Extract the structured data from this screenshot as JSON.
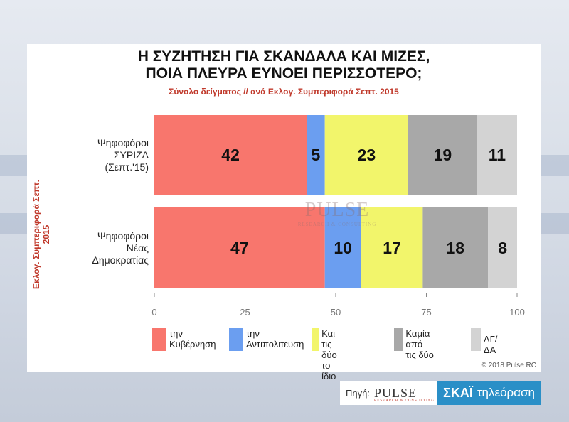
{
  "title_line1": "Η ΣΥΖΗΤΗΣΗ ΓΙΑ ΣΚΑΝΔΑΛΑ ΚΑΙ ΜΙΖΕΣ,",
  "title_line2": "ΠΟΙΑ ΠΛΕΥΡΑ ΕΥΝΟΕΙ ΠΕΡΙΣΣΟΤΕΡΟ;",
  "subtitle": "Σύνολο δείγματος // ανά Εκλογ. Συμπεριφορά Σεπτ. 2015",
  "copyright": "© 2018 Pulse RC",
  "watermark": {
    "name": "PULSE",
    "tagline": "RESEARCH & CONSULTING"
  },
  "source": {
    "label": "Πηγή:",
    "pulse": "PULSE",
    "pulse_sub": "RESEARCH & CONSULTING",
    "skai_bold": "ΣΚΑΪ",
    "skai_rest": "τηλεόραση"
  },
  "chart_data": {
    "type": "bar",
    "orientation": "horizontal",
    "stacked": true,
    "title": "Η ΣΥΖΗΤΗΣΗ ΓΙΑ ΣΚΑΝΔΑΛΑ ΚΑΙ ΜΙΖΕΣ, ΠΟΙΑ ΠΛΕΥΡΑ ΕΥΝΟΕΙ ΠΕΡΙΣΣΟΤΕΡΟ;",
    "subtitle": "Σύνολο δείγματος // ανά Εκλογ. Συμπεριφορά Σεπτ. 2015",
    "ylabel": "Εκλογ. Συμπεριφορά Σεπτ. 2015",
    "xlabel": "",
    "xlim": [
      0,
      100
    ],
    "xticks": [
      0,
      25,
      50,
      75,
      100
    ],
    "categories": [
      "Ψηφοφόροι\nΣΥΡΙΖΑ\n(Σεπτ.'15)",
      "Ψηφοφόροι\nΝέας\nΔημοκρατίας"
    ],
    "series": [
      {
        "name": "την\nΚυβέρνηση",
        "color": "#f8766d",
        "values": [
          42,
          47
        ]
      },
      {
        "name": "την\nΑντιπολιτευση",
        "color": "#6b9ef0",
        "values": [
          5,
          10
        ]
      },
      {
        "name": "Και τις δύο\nτο ίδιο",
        "color": "#f2f56b",
        "values": [
          23,
          17
        ]
      },
      {
        "name": "Καμία\nαπό τις δύο",
        "color": "#a8a8a8",
        "values": [
          19,
          18
        ]
      },
      {
        "name": "ΔΓ/ΔΑ",
        "color": "#d3d3d3",
        "values": [
          11,
          8
        ]
      }
    ],
    "legend_position": "bottom",
    "grid": false
  }
}
